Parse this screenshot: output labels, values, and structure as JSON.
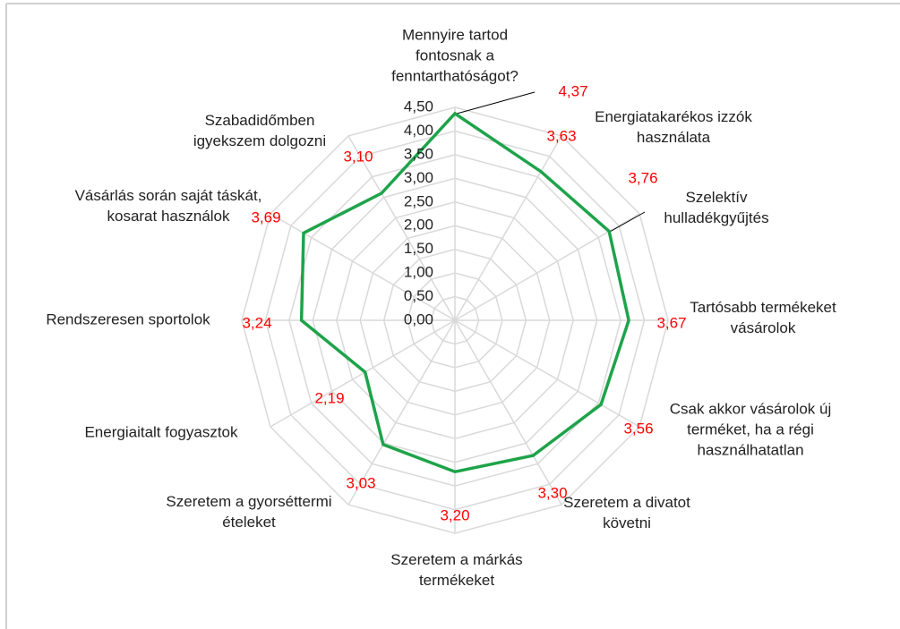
{
  "chart_data": {
    "type": "radar",
    "categories": [
      "Mennyire tartod fontosnak a fenntarthatóságot?",
      "Energiatakarékos izzók használata",
      "Szelektív hulladékgyűjtés",
      "Tartósabb termékeket vásárolok",
      "Csak akkor vásárolok új terméket, ha a régi használhatatlan",
      "Szeretem a divatot követni",
      "Szeretem a márkás termékeket",
      "Szeretem a gyorséttermi ételeket",
      "Energiaitalt fogyasztok",
      "Rendszeresen sportolok",
      "Vásárlás során saját táskát, kosarat használok",
      "Szabadidőmben igyekszem dolgozni"
    ],
    "values": [
      4.37,
      3.63,
      3.76,
      3.67,
      3.56,
      3.3,
      3.2,
      3.03,
      2.19,
      3.24,
      3.69,
      3.1
    ],
    "value_labels": [
      "4,37",
      "3,63",
      "3,76",
      "3,67",
      "3,56",
      "3,30",
      "3,20",
      "3,03",
      "2,19",
      "3,24",
      "3,69",
      "3,10"
    ],
    "color": "#1ea34a",
    "value_label_color": "#ff0000",
    "ylim": [
      0,
      4.5
    ],
    "yticks": [
      {
        "value": 0,
        "label": "0,00"
      },
      {
        "value": 0.5,
        "label": "0,50"
      },
      {
        "value": 1,
        "label": "1,00"
      },
      {
        "value": 1.5,
        "label": "1,50"
      },
      {
        "value": 2,
        "label": "2,00"
      },
      {
        "value": 2.5,
        "label": "2,50"
      },
      {
        "value": 3,
        "label": "3,00"
      },
      {
        "value": 3.5,
        "label": "3,50"
      },
      {
        "value": 4,
        "label": "4,00"
      },
      {
        "value": 4.5,
        "label": "4,50"
      }
    ],
    "grid": true
  }
}
